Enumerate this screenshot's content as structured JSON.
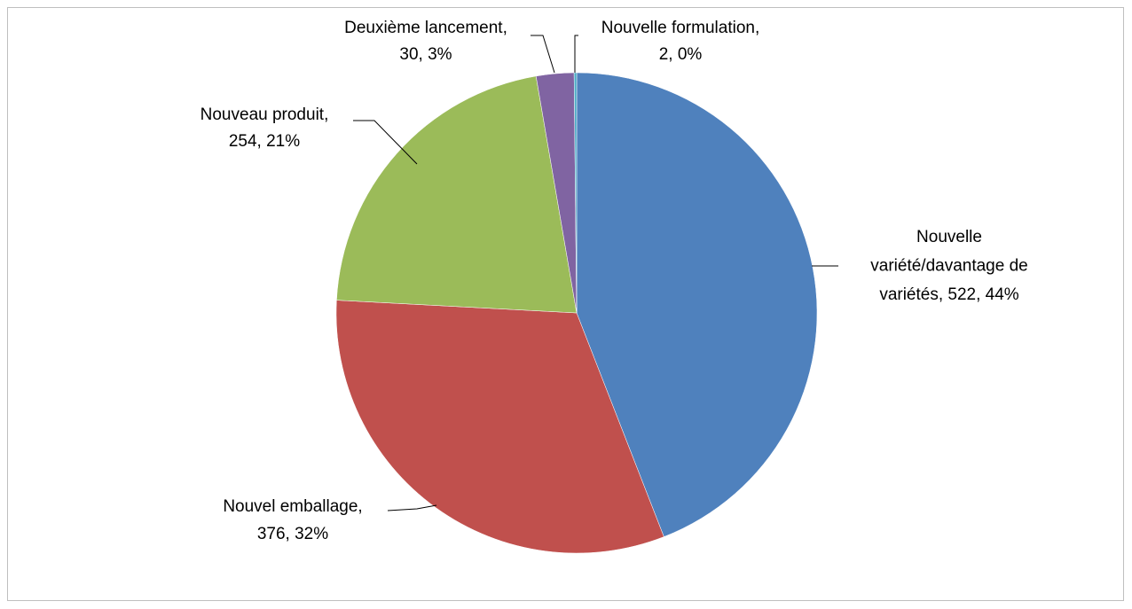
{
  "chart_data": {
    "type": "pie",
    "values": [
      522,
      376,
      254,
      30,
      2
    ],
    "value_labels": [
      [
        "Nouvelle",
        "variété/davantage de",
        "variétés, 522, 44%"
      ],
      [
        "Nouvel emballage,",
        "376, 32%"
      ],
      [
        "Nouveau produit,",
        "254, 21%"
      ],
      [
        "Deuxième lancement,",
        "30, 3%"
      ],
      [
        "Nouvelle formulation,",
        "2, 0%"
      ]
    ],
    "colors": [
      "#4f81bd",
      "#c0504d",
      "#9bbb59",
      "#8064a2",
      "#4bacc6"
    ]
  }
}
